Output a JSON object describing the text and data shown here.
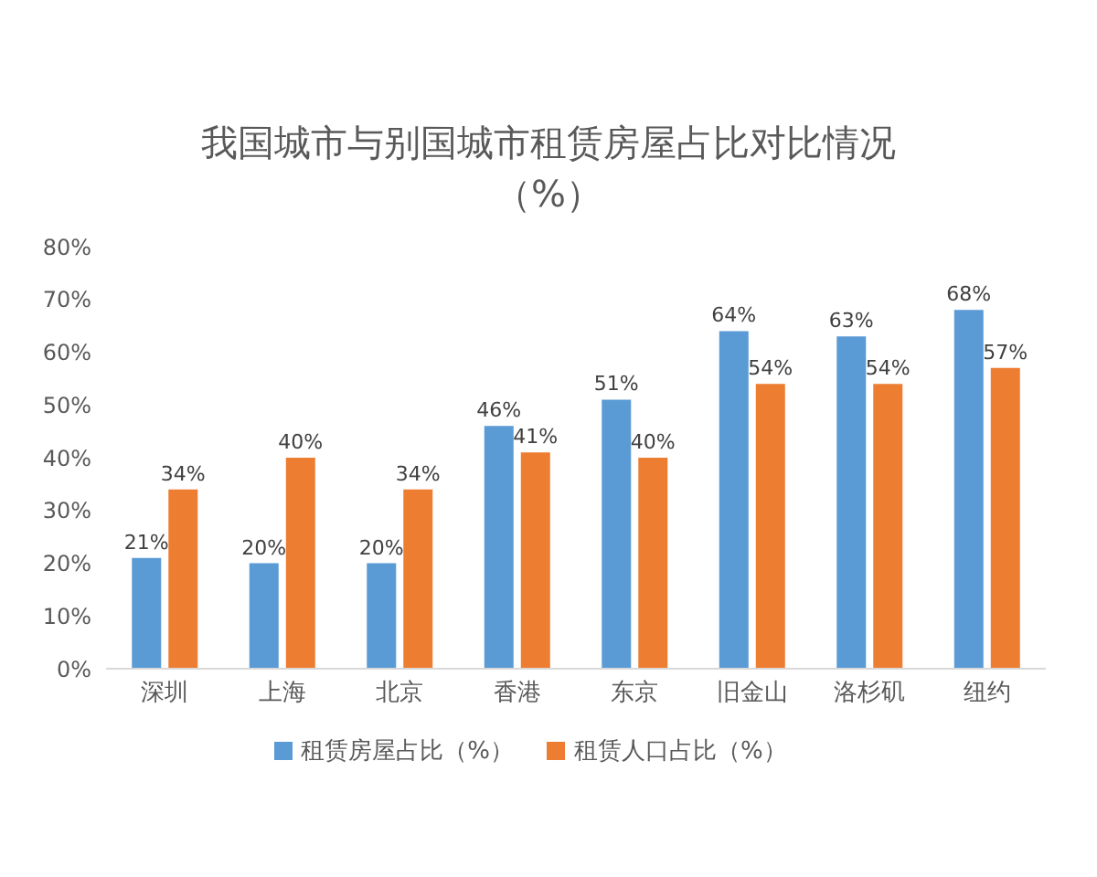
{
  "chart_data": {
    "type": "bar",
    "title": "我国城市与别国城市租赁房屋占比对比情况（%）",
    "categories": [
      "深圳",
      "上海",
      "北京",
      "香港",
      "东京",
      "旧金山",
      "洛杉矶",
      "纽约"
    ],
    "series": [
      {
        "name": "租赁房屋占比（%）",
        "color": "#5b9bd5",
        "values": [
          21,
          20,
          20,
          46,
          51,
          64,
          63,
          68
        ],
        "value_labels": [
          "21%",
          "20%",
          "20%",
          "46%",
          "51%",
          "64%",
          "63%",
          "68%"
        ]
      },
      {
        "name": "租赁人口占比（%）",
        "color": "#ed7d31",
        "values": [
          34,
          40,
          34,
          41,
          40,
          54,
          54,
          57
        ],
        "value_labels": [
          "34%",
          "40%",
          "34%",
          "41%",
          "40%",
          "54%",
          "54%",
          "57%"
        ]
      }
    ],
    "ylim": [
      0,
      80
    ],
    "yticks": [
      {
        "value": 0,
        "label": "0%"
      },
      {
        "value": 10,
        "label": "10%"
      },
      {
        "value": 20,
        "label": "20%"
      },
      {
        "value": 30,
        "label": "30%"
      },
      {
        "value": 40,
        "label": "40%"
      },
      {
        "value": 50,
        "label": "50%"
      },
      {
        "value": 60,
        "label": "60%"
      },
      {
        "value": 70,
        "label": "70%"
      },
      {
        "value": 80,
        "label": "80%"
      }
    ],
    "grid": false,
    "legend": "bottom"
  }
}
